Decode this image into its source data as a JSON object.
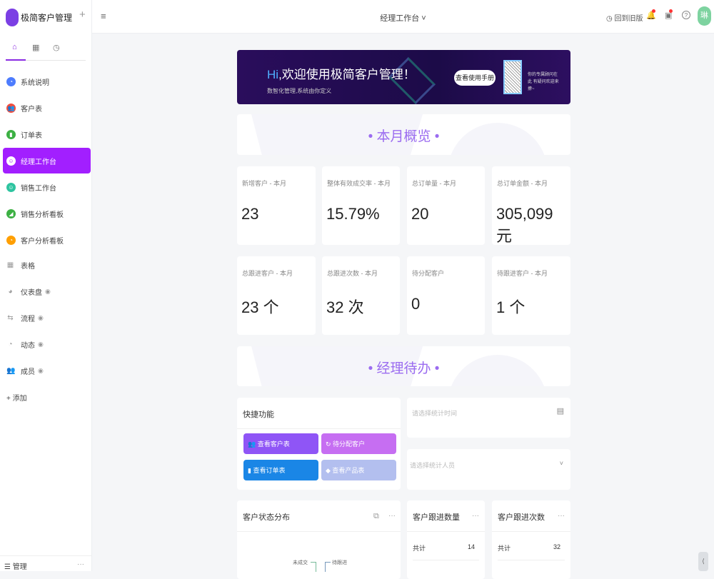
{
  "app": {
    "name": "极简客户管理",
    "add": "+"
  },
  "sidebar": {
    "tabs": [
      "⌂",
      "▦",
      "◷"
    ],
    "items": [
      {
        "label": "系统说明",
        "color": "#4d7cfe",
        "icon": "clock-icon",
        "glyph": "◔"
      },
      {
        "label": "客户表",
        "color": "#f04e3e",
        "icon": "users-icon",
        "glyph": "👥"
      },
      {
        "label": "订单表",
        "color": "#3cb043",
        "icon": "bag-icon",
        "glyph": "▮"
      },
      {
        "label": "经理工作台",
        "color": "#ffffff",
        "icon": "face-icon",
        "glyph": "☺"
      },
      {
        "label": "销售工作台",
        "color": "#2ec4a0",
        "icon": "smile-icon",
        "glyph": "☺"
      },
      {
        "label": "销售分析看板",
        "color": "#3cb043",
        "icon": "chart-icon",
        "glyph": "◢"
      },
      {
        "label": "客户分析看板",
        "color": "#ff9f00",
        "icon": "clock-icon",
        "glyph": "◔"
      }
    ],
    "groups": [
      {
        "label": "表格",
        "glyph": "▦",
        "icon": "grid-icon",
        "hidden": false
      },
      {
        "label": "仪表盘",
        "glyph": "◕",
        "icon": "dashboard-icon",
        "hidden": true
      },
      {
        "label": "流程",
        "glyph": "⇆",
        "icon": "flow-icon",
        "hidden": true
      },
      {
        "label": "动态",
        "glyph": "◔",
        "icon": "activity-icon",
        "hidden": true
      },
      {
        "label": "成员",
        "glyph": "👥",
        "icon": "members-icon",
        "hidden": true
      }
    ],
    "eye": "◉",
    "add": "+ 添加",
    "manage": "☰ 管理",
    "manage_more": "···"
  },
  "topbar": {
    "menu": "≡",
    "title": "经理工作台 ˅",
    "back": "◷ 回到旧版",
    "bell": "🔔",
    "inbox": "▣",
    "help": "?",
    "avatar": "琳"
  },
  "banner": {
    "hi": "Hi",
    "headline": ",欢迎使用极简客户管理！",
    "sub": "数智化管理,系统由你定义",
    "button": "查看使用手册",
    "qr_text": "你的专属顾问在此 有疑问欢迎来撩~"
  },
  "section1": {
    "title": "•   本月概览   •"
  },
  "stats": [
    {
      "label": "新增客户 - 本月",
      "value": "23"
    },
    {
      "label": "整体有效成交率 - 本月",
      "value": "15.79%"
    },
    {
      "label": "总订单量 - 本月",
      "value": "20"
    },
    {
      "label": "总订单金额 - 本月",
      "value": "305,099 元"
    },
    {
      "label": "总跟进客户 - 本月",
      "value": "23 个"
    },
    {
      "label": "总跟进次数 - 本月",
      "value": "32 次"
    },
    {
      "label": "待分配客户",
      "value": "0"
    },
    {
      "label": "待跟进客户 - 本月",
      "value": "1 个"
    }
  ],
  "section2": {
    "title": "•   经理待办   •"
  },
  "quick": {
    "title": "快捷功能",
    "buttons": [
      {
        "label": "👥 查看客户表",
        "color": "#8f55f6"
      },
      {
        "label": "↻ 待分配客户",
        "color": "#c66ef2"
      },
      {
        "label": "▮ 查看订单表",
        "color": "#1a86e6"
      },
      {
        "label": "◆ 查看产品表",
        "color": "#b3bfef"
      }
    ]
  },
  "filters": {
    "time_placeholder": "请选择统计时间",
    "time_icon": "▤",
    "person_placeholder": "请选择统计人员",
    "person_icon": "˅"
  },
  "status_card": {
    "title": "客户状态分布",
    "edit": "⧉",
    "more": "···",
    "legend": [
      "未成交",
      "待跟进"
    ]
  },
  "followup_count": {
    "title": "客户跟进数量",
    "more": "···",
    "rows": [
      {
        "label": "共计",
        "value": "14"
      }
    ]
  },
  "followup_times": {
    "title": "客户跟进次数",
    "more": "···",
    "rows": [
      {
        "label": "共计",
        "value": "32"
      }
    ]
  },
  "scroll": "⟨"
}
